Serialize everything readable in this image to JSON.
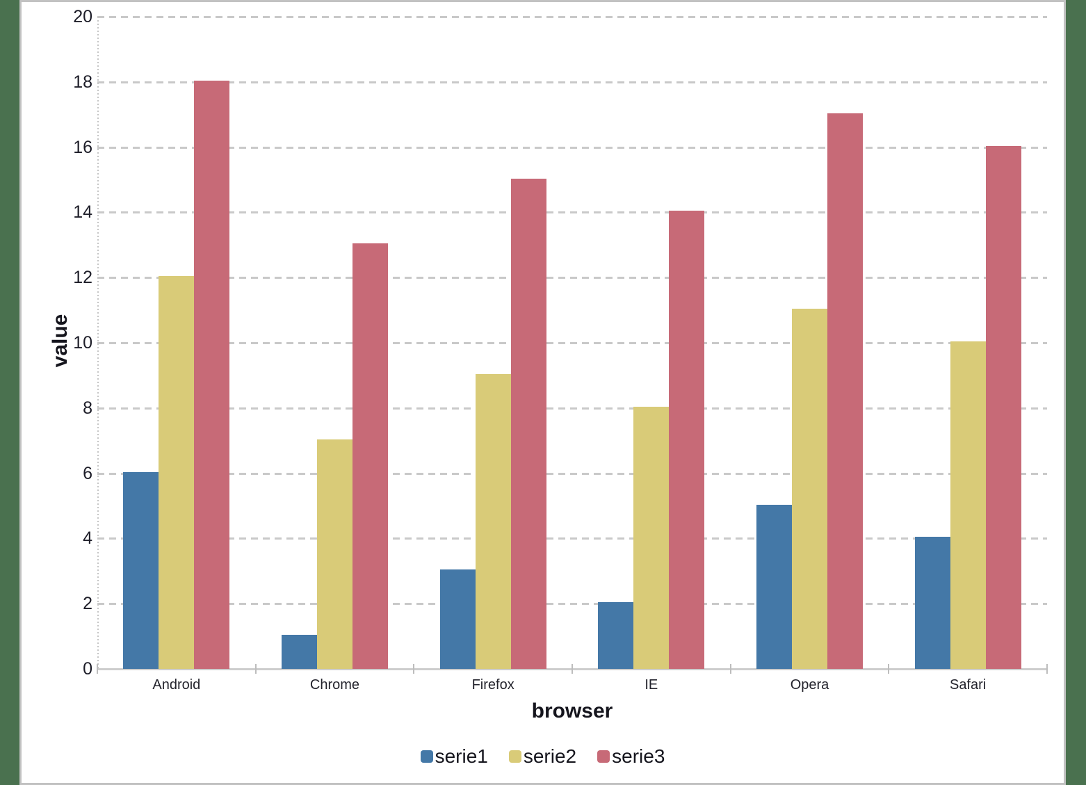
{
  "chart_data": {
    "type": "bar",
    "title": "",
    "xlabel": "browser",
    "ylabel": "value",
    "categories": [
      "Android",
      "Chrome",
      "Firefox",
      "IE",
      "Opera",
      "Safari"
    ],
    "series": [
      {
        "name": "serie1",
        "color": "#4478A7",
        "values": [
          6,
          1,
          3,
          2,
          5,
          4
        ]
      },
      {
        "name": "serie2",
        "color": "#D9CB78",
        "values": [
          12,
          7,
          9,
          8,
          11,
          10
        ]
      },
      {
        "name": "serie3",
        "color": "#C76A77",
        "values": [
          18,
          13,
          15,
          14,
          17,
          16
        ]
      }
    ],
    "ylim": [
      0,
      20
    ],
    "y_ticks": [
      0,
      2,
      4,
      6,
      8,
      10,
      12,
      14,
      16,
      18,
      20
    ],
    "grid": "dashed-horizontal",
    "legend_position": "bottom"
  },
  "colors": {
    "background_green": "#4A714F",
    "panel_border": "#C2C2C2",
    "gridline": "#C9C9C9",
    "axis_line": "#C6C6C6",
    "tick_text": "#1D1D28",
    "label_text": "#23232C"
  }
}
